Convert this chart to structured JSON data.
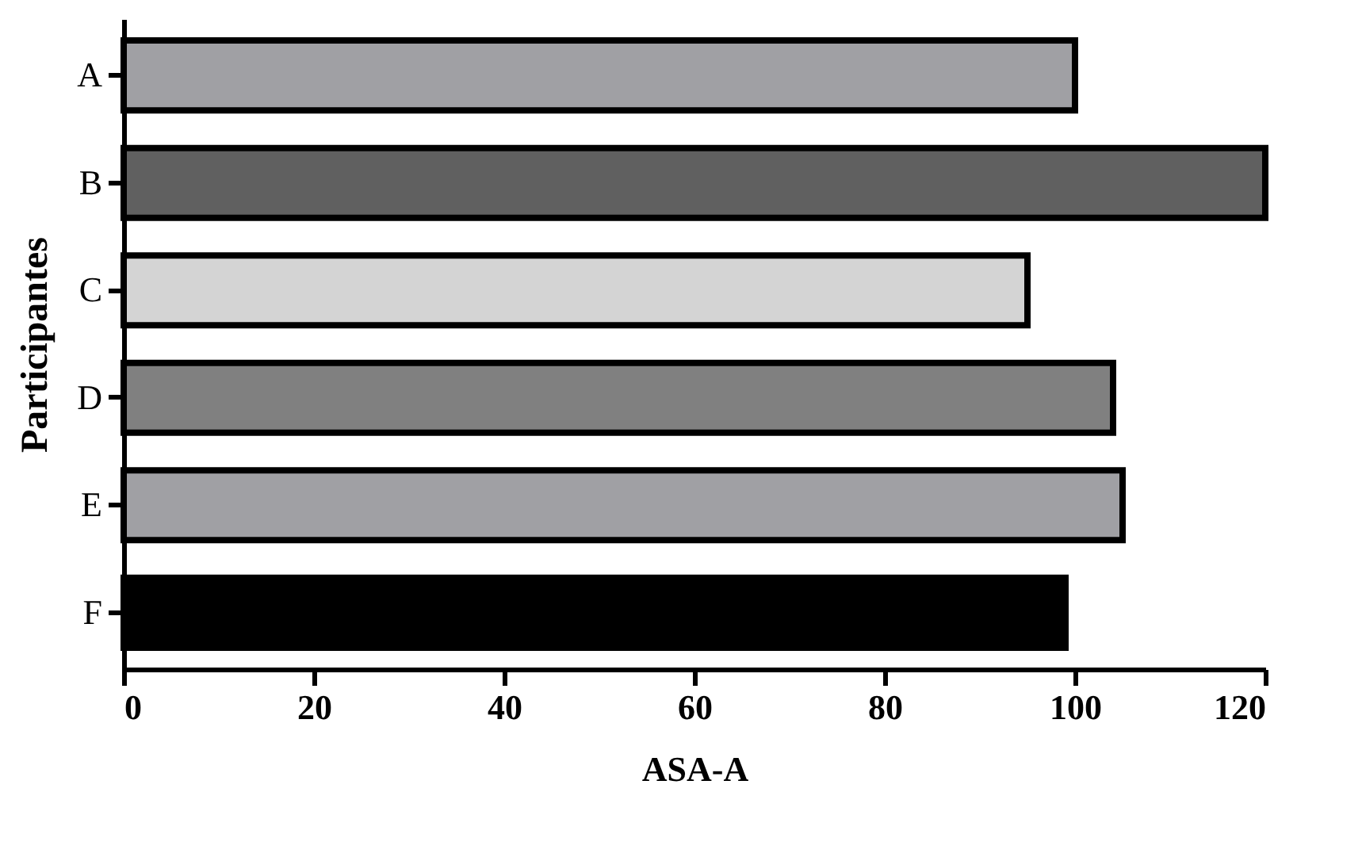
{
  "chart_data": {
    "type": "bar",
    "orientation": "horizontal",
    "xlabel": "ASA-A",
    "ylabel": "Participantes",
    "categories": [
      "A",
      "B",
      "C",
      "D",
      "E",
      "F"
    ],
    "values": [
      100,
      120,
      95,
      104,
      105,
      99
    ],
    "colors": [
      "#a0a0a4",
      "#606060",
      "#d4d4d4",
      "#808080",
      "#a0a0a4",
      "#000000"
    ],
    "xlim": [
      0,
      120
    ],
    "xticks": [
      0,
      20,
      40,
      60,
      80,
      100,
      120
    ],
    "grid": false
  }
}
